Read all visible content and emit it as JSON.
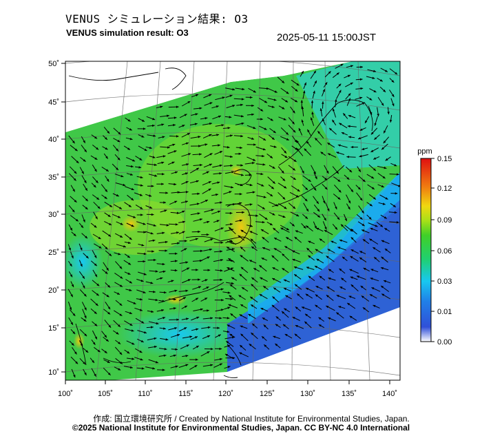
{
  "title": {
    "japanese": "VENUS シミュレーション結果: O3",
    "english": "VENUS simulation result: O3",
    "timestamp": "2025-05-11 15:00JST"
  },
  "map": {
    "lat_labels": [
      "50˚",
      "45˚",
      "40˚",
      "35˚",
      "30˚",
      "25˚",
      "20˚",
      "15˚",
      "10˚"
    ],
    "lon_labels": [
      "100˚",
      "105˚",
      "110˚",
      "115˚",
      "120˚",
      "125˚",
      "130˚",
      "135˚",
      "140˚"
    ]
  },
  "colorbar": {
    "unit": "ppm",
    "ticks": [
      "0.15",
      "0.12",
      "0.09",
      "0.06",
      "0.03",
      "0.01",
      "0.00"
    ],
    "colors": [
      "#ffffff",
      "#2060d8",
      "#18c8f0",
      "#28d048",
      "#88e020",
      "#f0d010",
      "#f07010",
      "#e01010"
    ]
  },
  "credits": {
    "line1": "作成: 国立環境研究所 / Created by National Institute for Environmental Studies, Japan.",
    "line2": "©2025 National Institute for Environmental Studies, Japan. CC BY-NC 4.0 International"
  }
}
